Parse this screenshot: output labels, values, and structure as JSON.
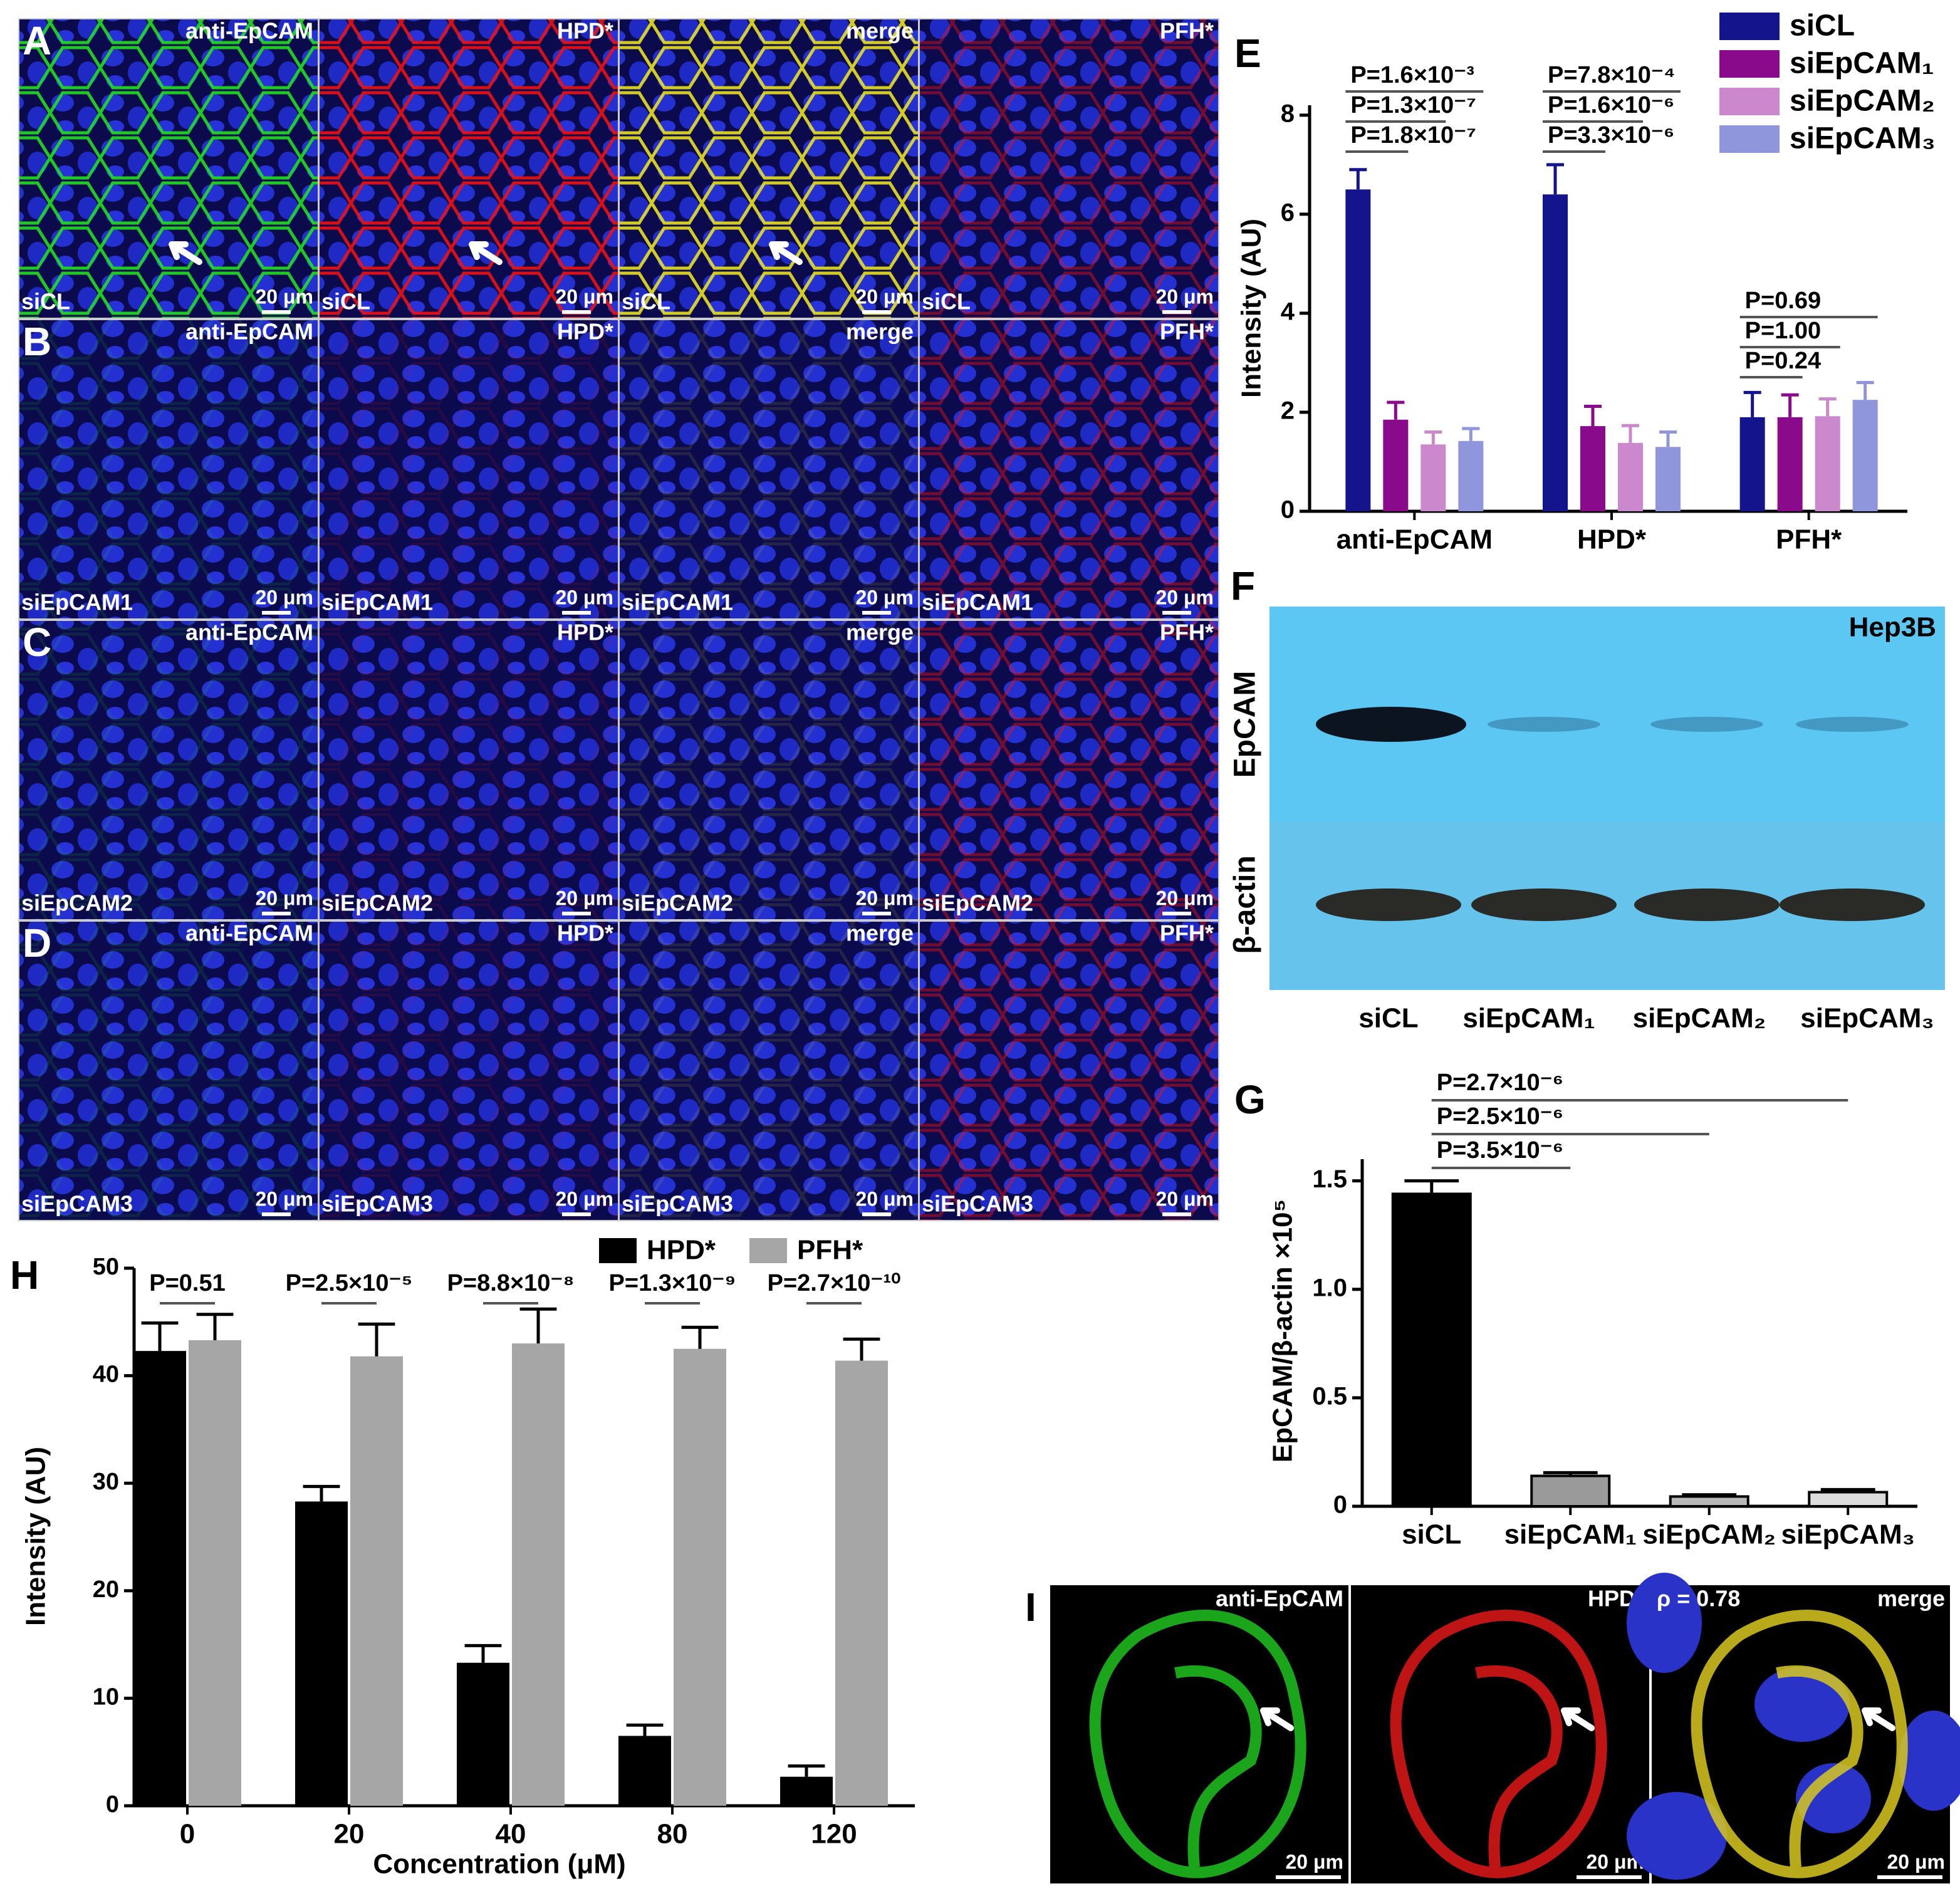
{
  "microscopy": {
    "rows": [
      {
        "letter": "A",
        "condition": "siCL"
      },
      {
        "letter": "B",
        "condition": "siEpCAM1"
      },
      {
        "letter": "C",
        "condition": "siEpCAM2"
      },
      {
        "letter": "D",
        "condition": "siEpCAM3"
      }
    ],
    "channels": [
      "anti-EpCAM",
      "HPD*",
      "merge",
      "PFH*"
    ],
    "scale_bar": "20 μm"
  },
  "blot": {
    "letter": "F",
    "cell_line": "Hep3B",
    "rows": [
      "EpCAM",
      "β-actin"
    ],
    "lanes": [
      "siCL",
      "siEpCAM₁",
      "siEpCAM₂",
      "siEpCAM₃"
    ]
  },
  "colocalization": {
    "letter": "I",
    "channels": [
      "anti-EpCAM",
      "HPD*",
      "merge"
    ],
    "coefficient": "ρ = 0.78",
    "scale_bar": "20 μm"
  },
  "chart_data": [
    {
      "type": "bar",
      "letter": "E",
      "y_label": "Intensity (AU)",
      "categories": [
        "anti-EpCAM",
        "HPD*",
        "PFH*"
      ],
      "series": [
        {
          "name": "siCL",
          "color": "#14148c",
          "values": [
            6.5,
            6.4,
            1.9
          ],
          "errors": [
            0.4,
            0.6,
            0.5
          ]
        },
        {
          "name": "siEpCAM₁",
          "color": "#8a0a8c",
          "values": [
            1.85,
            1.72,
            1.9
          ],
          "errors": [
            0.35,
            0.4,
            0.45
          ]
        },
        {
          "name": "siEpCAM₂",
          "color": "#cc88cc",
          "values": [
            1.35,
            1.38,
            1.92
          ],
          "errors": [
            0.25,
            0.35,
            0.35
          ]
        },
        {
          "name": "siEpCAM₃",
          "color": "#8f96dc",
          "values": [
            1.42,
            1.3,
            2.25
          ],
          "errors": [
            0.25,
            0.3,
            0.35
          ]
        }
      ],
      "ylim": [
        0,
        8.2
      ],
      "yticks": [
        0,
        2,
        4,
        6,
        8
      ],
      "legend": "top-right",
      "p_values": [
        [
          "P=1.6×10⁻³",
          "P=1.3×10⁻⁷",
          "P=1.8×10⁻⁷"
        ],
        [
          "P=7.8×10⁻⁴",
          "P=1.6×10⁻⁶",
          "P=3.3×10⁻⁶"
        ],
        [
          "P=0.69",
          "P=1.00",
          "P=0.24"
        ]
      ]
    },
    {
      "type": "bar",
      "letter": "G",
      "y_label": "EpCAM/β-actin ×10⁵",
      "categories": [
        "siCL",
        "siEpCAM₁",
        "siEpCAM₂",
        "siEpCAM₃"
      ],
      "values": [
        1.44,
        0.14,
        0.045,
        0.065
      ],
      "errors": [
        0.06,
        0.015,
        0.008,
        0.012
      ],
      "colors": [
        "#000000",
        "#9a9a9a",
        "#b8b8b8",
        "#dcdcdc"
      ],
      "ylim": [
        0,
        1.6
      ],
      "yticks": [
        0,
        0.5,
        {
          "value": 1,
          "label": "1.0"
        },
        1.5
      ],
      "p_values": [
        "P=2.7×10⁻⁶",
        "P=2.5×10⁻⁶",
        "P=3.5×10⁻⁶"
      ]
    },
    {
      "type": "bar",
      "letter": "H",
      "x_label": "Concentration (μM)",
      "y_label": "Intensity (AU)",
      "categories": [
        "0",
        "20",
        "40",
        "80",
        "120"
      ],
      "series": [
        {
          "name": "HPD*",
          "color": "#000000",
          "values": [
            42.3,
            28.3,
            13.3,
            6.5,
            2.7
          ],
          "errors": [
            2.6,
            1.4,
            1.6,
            1.0,
            1.0
          ]
        },
        {
          "name": "PFH*",
          "color": "#a6a6a6",
          "values": [
            43.3,
            41.8,
            43.0,
            42.5,
            41.4
          ],
          "errors": [
            2.4,
            3.0,
            3.2,
            2.0,
            2.0
          ]
        }
      ],
      "ylim": [
        0,
        50
      ],
      "yticks": [
        0,
        10,
        20,
        30,
        40,
        50
      ],
      "legend": "top",
      "p_values": [
        "P=0.51",
        "P=2.5×10⁻⁵",
        "P=8.8×10⁻⁸",
        "P=1.3×10⁻⁹",
        "P=2.7×10⁻¹⁰"
      ]
    }
  ]
}
